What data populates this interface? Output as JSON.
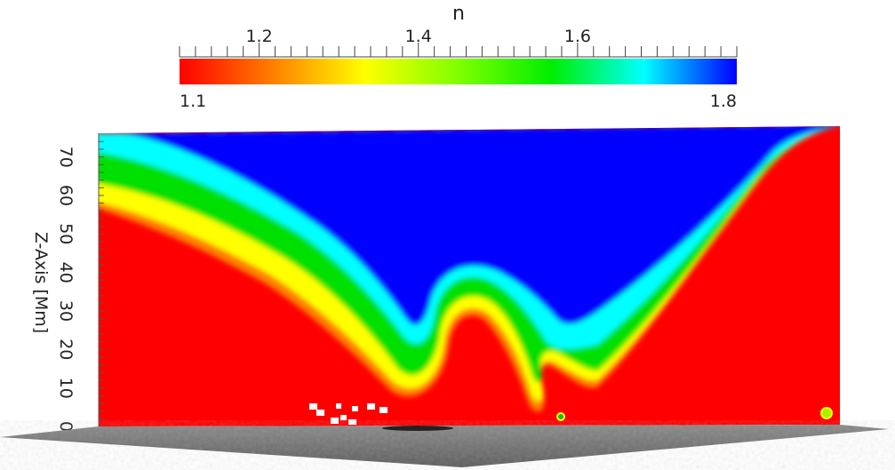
{
  "chart_data": {
    "type": "heatmap",
    "title": "",
    "colorbar": {
      "label": "n",
      "range": [
        1.1,
        1.8
      ],
      "major_ticks": [
        1.2,
        1.4,
        1.6
      ],
      "end_labels": [
        "1.1",
        "1.8"
      ],
      "colors": [
        "#ff0000",
        "#ff7f00",
        "#ffff00",
        "#7fff00",
        "#00ee00",
        "#00ffff",
        "#0000ff"
      ]
    },
    "yaxis": {
      "label": "Z-Axis [Mm]",
      "ticks": [
        "0",
        "10",
        "20",
        "30",
        "40",
        "50",
        "60",
        "70"
      ],
      "range": [
        0,
        75
      ]
    },
    "blue_boundary_profile": {
      "x_fraction": [
        0.0,
        0.05,
        0.12,
        0.2,
        0.28,
        0.36,
        0.42,
        0.46,
        0.5,
        0.54,
        0.6,
        0.66,
        0.72,
        0.78,
        0.84,
        0.9,
        0.95,
        1.0
      ],
      "z_Mm": [
        75,
        72,
        66,
        60,
        54,
        46,
        38,
        32,
        36,
        37,
        36,
        30,
        34,
        45,
        58,
        70,
        75,
        75
      ]
    },
    "red_arch_peak_Mm": 26
  },
  "colors": {
    "background": "#ffffff",
    "low_n": "#ff0000",
    "high_n": "#0000ff",
    "surface": "#7a7a7a"
  }
}
